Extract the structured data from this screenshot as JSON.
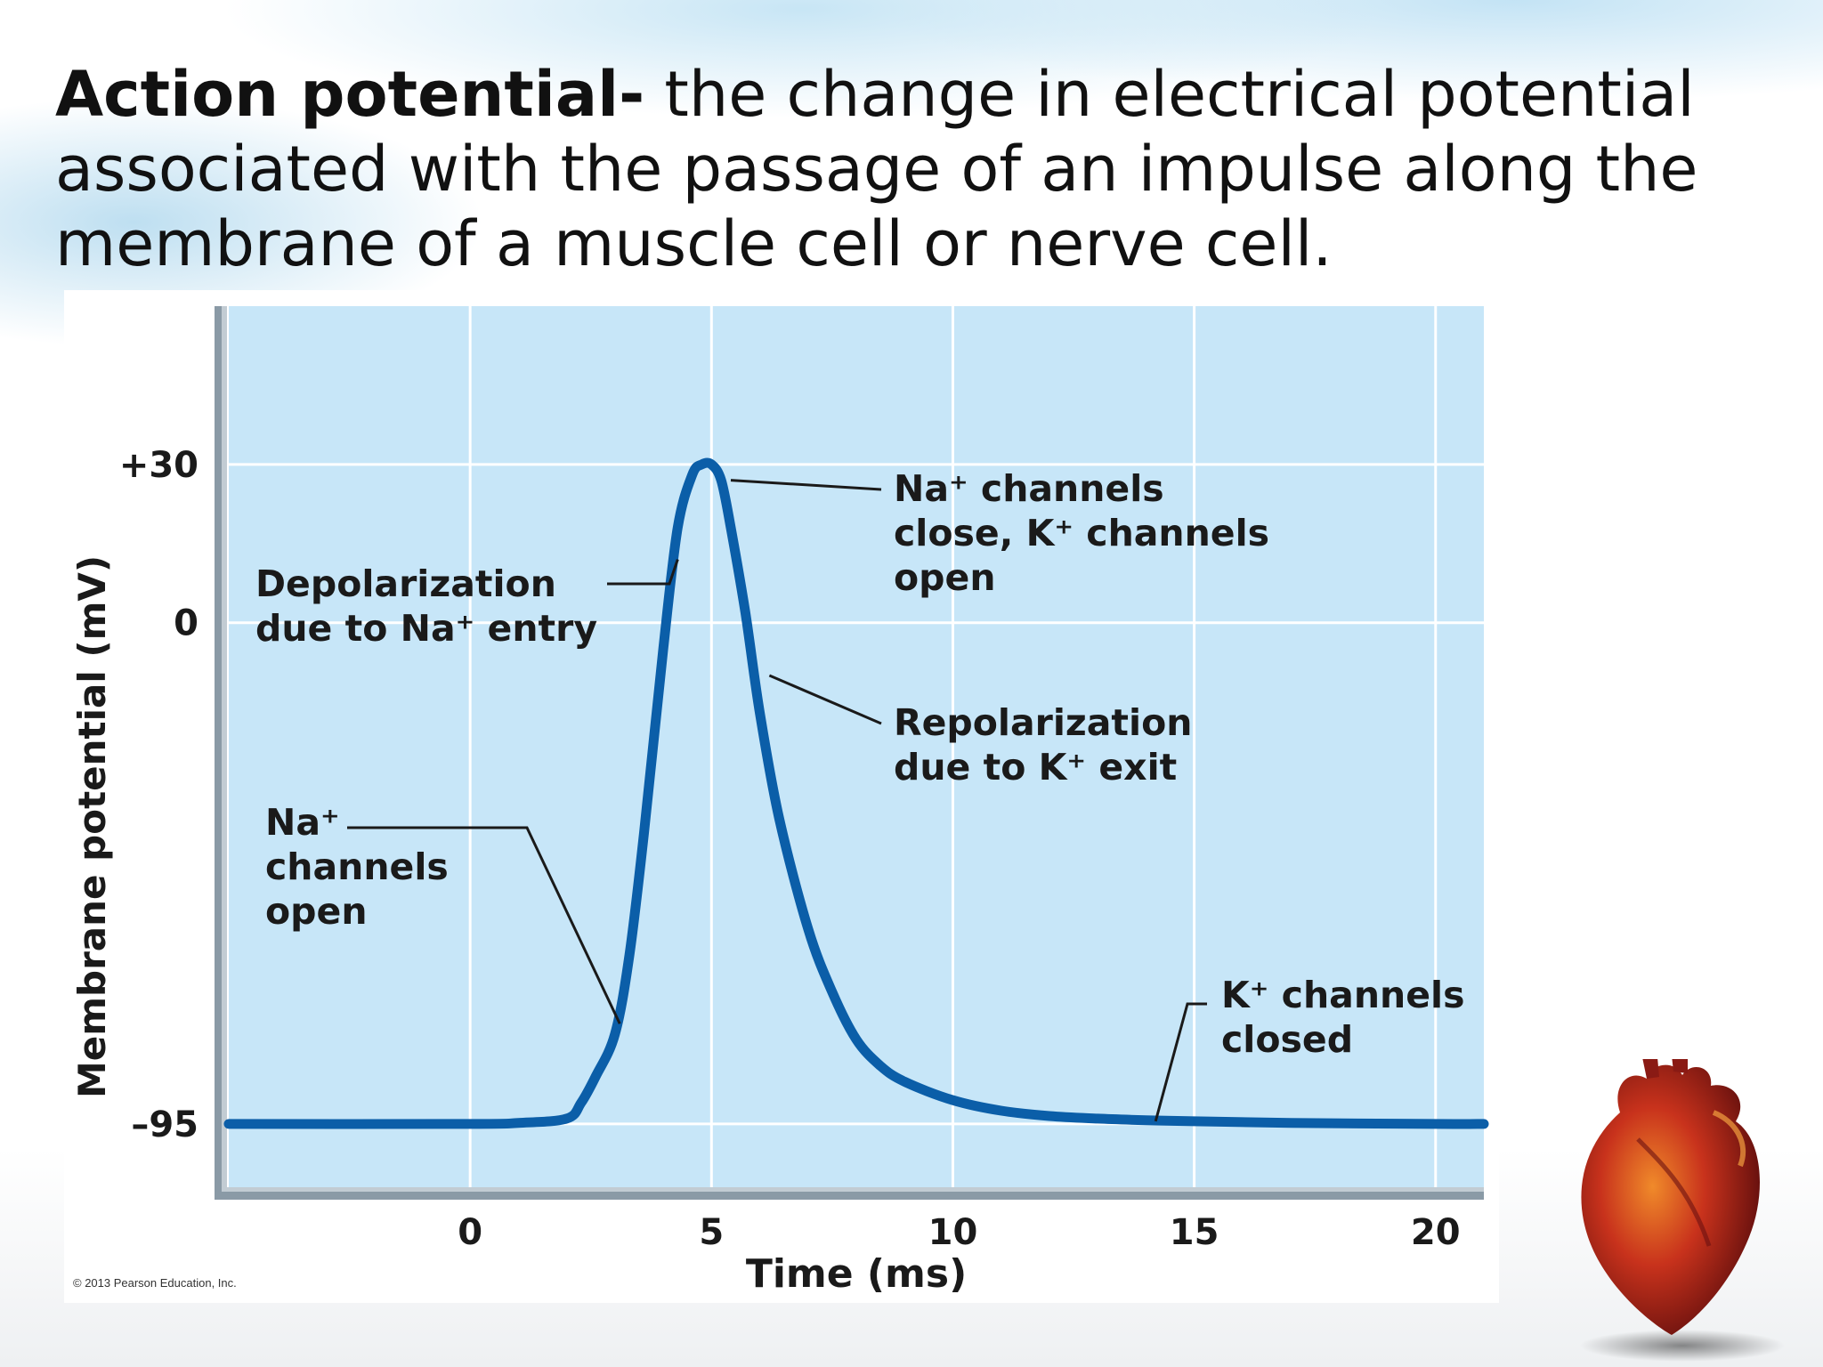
{
  "slide": {
    "term": "Action potential-",
    "definition": " the change in electrical potential associated with the passage of an impulse along the membrane of a muscle cell or nerve cell."
  },
  "copyright": "© 2013 Pearson Education, Inc.",
  "chart_data": {
    "type": "line",
    "title": "",
    "xlabel": "Time (ms)",
    "ylabel": "Membrane potential (mV)",
    "xlim": [
      -5,
      21
    ],
    "ylim": [
      -107,
      60
    ],
    "x_ticks": [
      0,
      5,
      10,
      15,
      20
    ],
    "y_ticks": [
      {
        "value": 30,
        "label": "+30"
      },
      {
        "value": 0,
        "label": "0"
      },
      {
        "value": -95,
        "label": "–95"
      }
    ],
    "grid": true,
    "series": [
      {
        "color": "#0b5ea8",
        "x": [
          -5,
          0,
          1,
          2,
          2.3,
          2.6,
          3,
          3.3,
          3.6,
          4,
          4.3,
          4.6,
          4.8,
          5,
          5.2,
          5.4,
          5.7,
          6,
          6.4,
          7,
          7.5,
          8,
          8.5,
          9,
          10,
          11,
          12,
          13,
          14,
          15,
          17,
          20,
          21
        ],
        "y": [
          -95,
          -95,
          -94.8,
          -94,
          -91,
          -86,
          -78,
          -63,
          -40,
          -5,
          18,
          28,
          30,
          30,
          27,
          18,
          2,
          -17,
          -37,
          -58,
          -70,
          -79,
          -84,
          -87,
          -90.5,
          -92.5,
          -93.5,
          -94,
          -94.3,
          -94.5,
          -94.8,
          -95,
          -95
        ]
      }
    ],
    "annotations": [
      {
        "lines": [
          "Depolarization",
          "due to Na⁺ entry"
        ],
        "points_to": {
          "x": 4.3,
          "y": 12
        }
      },
      {
        "lines": [
          "Na⁺ channels",
          "close, K⁺ channels",
          "open"
        ],
        "points_to": {
          "x": 5.4,
          "y": 27
        }
      },
      {
        "lines": [
          "Repolarization",
          "due to K⁺ exit"
        ],
        "points_to": {
          "x": 6.2,
          "y": -10
        }
      },
      {
        "lines": [
          "Na⁺",
          "channels",
          "open"
        ],
        "points_to": {
          "x": 3.1,
          "y": -76
        }
      },
      {
        "lines": [
          "K⁺ channels",
          "closed"
        ],
        "points_to": {
          "x": 14.2,
          "y": -94.5
        }
      }
    ]
  },
  "heart": {
    "icon": "heart-icon"
  }
}
